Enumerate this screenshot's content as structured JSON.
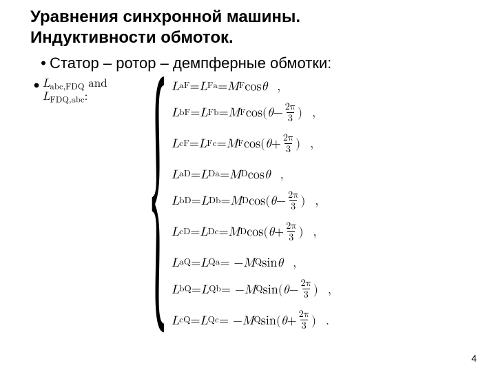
{
  "title_line1": "Уравнения синхронной машины.",
  "title_line2": "Индуктивности обмоток.",
  "bullet_main": "Статор – ротор – демпферные обмотки:",
  "left_label": {
    "L1_text": "L",
    "L1_sub": "abc,FDQ",
    "and": " and",
    "L2_text": "L",
    "L2_sub": "FDQ,abc",
    "colon": ":"
  },
  "symbols": {
    "L": "L",
    "M": "M",
    "cos": "cos",
    "sin": "sin",
    "theta": "θ",
    "minus": "−",
    "plus": "+",
    "eq": " = ",
    "two_pi": "2π",
    "three": "3"
  },
  "groups": [
    {
      "rows": [
        {
          "lhs_sub": "aF",
          "rhs1_sub": "Fa",
          "coef_sub": "F",
          "trig": "cos",
          "arg": "plain",
          "end": ","
        },
        {
          "lhs_sub": "bF",
          "rhs1_sub": "Fb",
          "coef_sub": "F",
          "trig": "cos",
          "arg": "minus",
          "end": ","
        },
        {
          "lhs_sub": "cF",
          "rhs1_sub": "Fc",
          "coef_sub": "F",
          "trig": "cos",
          "arg": "plus",
          "end": ","
        }
      ],
      "neg": false
    },
    {
      "rows": [
        {
          "lhs_sub": "aD",
          "rhs1_sub": "Da",
          "coef_sub": "D",
          "trig": "cos",
          "arg": "plain",
          "end": ","
        },
        {
          "lhs_sub": "bD",
          "rhs1_sub": "Db",
          "coef_sub": "D",
          "trig": "cos",
          "arg": "minus",
          "end": ","
        },
        {
          "lhs_sub": "cD",
          "rhs1_sub": "Dc",
          "coef_sub": "D",
          "trig": "cos",
          "arg": "plus",
          "end": ","
        }
      ],
      "neg": false
    },
    {
      "rows": [
        {
          "lhs_sub": "aQ",
          "rhs1_sub": "Qa",
          "coef_sub": "Q",
          "trig": "sin",
          "arg": "plain",
          "end": ","
        },
        {
          "lhs_sub": "bQ",
          "rhs1_sub": "Qb",
          "coef_sub": "Q",
          "trig": "sin",
          "arg": "minus",
          "end": ","
        },
        {
          "lhs_sub": "cQ",
          "rhs1_sub": "Qc",
          "coef_sub": "Q",
          "trig": "sin",
          "arg": "plus",
          "end": "."
        }
      ],
      "neg": true
    }
  ],
  "page_number": "4",
  "colors": {
    "text": "#000000",
    "bg": "#ffffff"
  },
  "typography": {
    "title_pt": 24,
    "body_pt": 22,
    "math_pt": 18,
    "left_math_pt": 17
  }
}
